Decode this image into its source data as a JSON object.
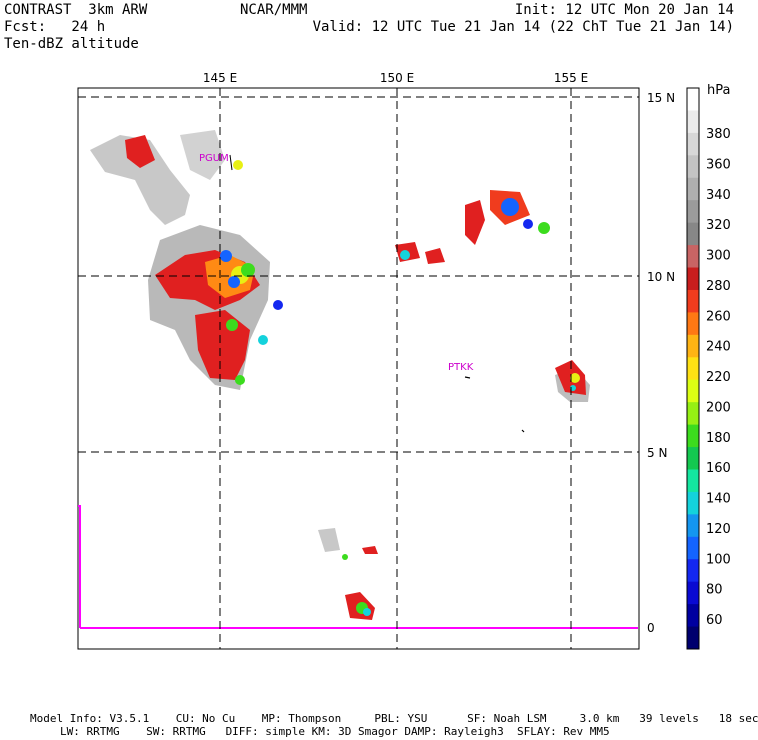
{
  "header": {
    "model": "CONTRAST  3km ARW",
    "org": "NCAR/MMM",
    "init": "Init: 12 UTC Mon 20 Jan 14",
    "fcst": "Fcst:   24 h",
    "valid": "Valid: 12 UTC Tue 21 Jan 14 (22 ChT Tue 21 Jan 14)",
    "field": "Ten-dBZ altitude"
  },
  "map": {
    "lon_labels": [
      "145 E",
      "150 E",
      "155 E"
    ],
    "lat_labels": [
      "15 N",
      "10 N",
      "5 N",
      "0"
    ],
    "stations": [
      {
        "id": "PGUM",
        "lon": 144.8,
        "lat": 13.5
      },
      {
        "id": "PTKK",
        "lon": 151.8,
        "lat": 7.5
      }
    ]
  },
  "colorbar": {
    "unit": "hPa",
    "tick_labels": [
      "380",
      "360",
      "340",
      "320",
      "300",
      "280",
      "260",
      "240",
      "220",
      "200",
      "180",
      "160",
      "140",
      "120",
      "100",
      "80",
      "60"
    ],
    "colors": [
      "#ffffff",
      "#ebebeb",
      "#d7d7d7",
      "#c3c3c3",
      "#afafaf",
      "#9b9b9b",
      "#878787",
      "#c86464",
      "#c81e1e",
      "#f03c1e",
      "#ff7814",
      "#ffb414",
      "#ffe114",
      "#dcff14",
      "#96f014",
      "#3cdc1e",
      "#14c850",
      "#14e6a0",
      "#14d2dc",
      "#1496f0",
      "#1464ff",
      "#1428f0",
      "#0a0ad2",
      "#0000a0",
      "#00006e"
    ]
  },
  "footer": {
    "line1": "Model Info: V3.5.1    CU: No Cu    MP: Thompson     PBL: YSU      SF: Noah LSM     3.0 km   39 levels   18 sec",
    "line2": "LW: RRTMG    SW: RRTMG   DIFF: simple KM: 3D Smagor DAMP: Rayleigh3  SFLAY: Rev MM5"
  }
}
